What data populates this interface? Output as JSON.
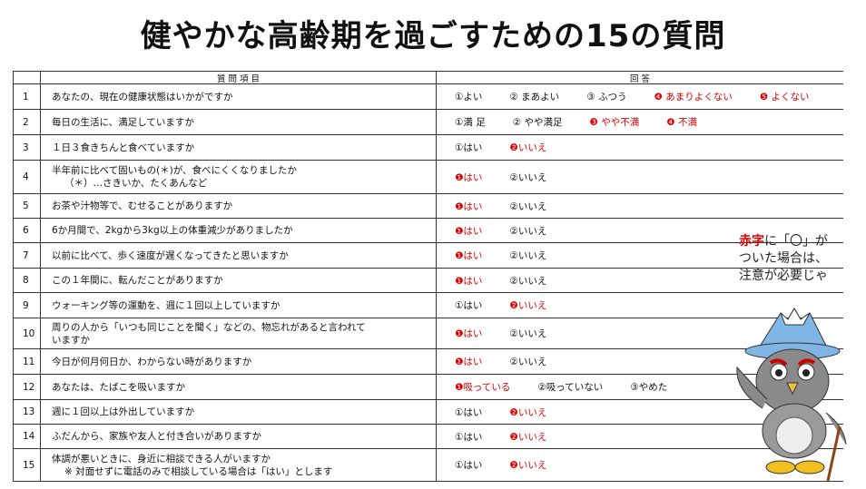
{
  "title": "健やかな高齢期を過ごすための15の質問",
  "table": {
    "headers": [
      "質 問 項 目",
      "回 答"
    ],
    "rows": [
      {
        "no": 1,
        "question": [
          "あなたの、現在の健康状態はいかがですか"
        ],
        "options": [
          {
            "text": "①よい",
            "red": false
          },
          {
            "text": "② まあよい",
            "red": false
          },
          {
            "text": "③ ふつう",
            "red": false
          },
          {
            "text": "❹ あまりよくない",
            "red": true
          },
          {
            "text": "❺ よくない",
            "red": true
          }
        ]
      },
      {
        "no": 2,
        "question": [
          "毎日の生活に、満足していますか"
        ],
        "options": [
          {
            "text": "①満 足",
            "red": false
          },
          {
            "text": "② やや満足",
            "red": false
          },
          {
            "text": "❸ やや不満",
            "red": true
          },
          {
            "text": "❹ 不満",
            "red": true
          }
        ]
      },
      {
        "no": 3,
        "question": [
          "１日３食きちんと食べていますか"
        ],
        "options": [
          {
            "text": "①はい",
            "red": false
          },
          {
            "text": "❷いいえ",
            "red": true
          }
        ]
      },
      {
        "no": 4,
        "question": [
          "半年前に比べて固いもの(＊)が、食べにくくなりましたか",
          "（＊）…さきいか、たくあんなど"
        ],
        "options": [
          {
            "text": "❶はい",
            "red": true
          },
          {
            "text": "②いいえ",
            "red": false
          }
        ]
      },
      {
        "no": 5,
        "question": [
          "お茶や汁物等で、むせることがありますか"
        ],
        "options": [
          {
            "text": "❶はい",
            "red": true
          },
          {
            "text": "②いいえ",
            "red": false
          }
        ]
      },
      {
        "no": 6,
        "question": [
          "6か月間で、2kgから3kg以上の体重減少がありましたか"
        ],
        "options": [
          {
            "text": "❶はい",
            "red": true
          },
          {
            "text": "②いいえ",
            "red": false
          }
        ]
      },
      {
        "no": 7,
        "question": [
          "以前に比べて、歩く速度が遅くなってきたと思いますか"
        ],
        "options": [
          {
            "text": "❶はい",
            "red": true
          },
          {
            "text": "②いいえ",
            "red": false
          }
        ]
      },
      {
        "no": 8,
        "question": [
          "この１年間に、転んだことがありますか"
        ],
        "options": [
          {
            "text": "❶はい",
            "red": true
          },
          {
            "text": "②いいえ",
            "red": false
          }
        ]
      },
      {
        "no": 9,
        "question": [
          "ウォーキング等の運動を、週に１回以上していますか"
        ],
        "options": [
          {
            "text": "①はい",
            "red": false
          },
          {
            "text": "❷いいえ",
            "red": true
          }
        ]
      },
      {
        "no": 10,
        "question": [
          "周りの人から「いつも同じことを聞く」などの、物忘れがあると言われて",
          "いますか"
        ],
        "options": [
          {
            "text": "❶はい",
            "red": true
          },
          {
            "text": "②いいえ",
            "red": false
          }
        ]
      },
      {
        "no": 11,
        "question": [
          "今日が何月何日か、わからない時がありますか"
        ],
        "options": [
          {
            "text": "❶はい",
            "red": true
          },
          {
            "text": "②いいえ",
            "red": false
          }
        ]
      },
      {
        "no": 12,
        "question": [
          "あなたは、たばこを吸いますか"
        ],
        "options": [
          {
            "text": "❶吸っている",
            "red": true
          },
          {
            "text": "②吸っていない",
            "red": false
          },
          {
            "text": "③やめた",
            "red": false
          }
        ]
      },
      {
        "no": 13,
        "question": [
          "週に１回以上は外出していますか"
        ],
        "options": [
          {
            "text": "①はい",
            "red": false
          },
          {
            "text": "❷いいえ",
            "red": true
          }
        ]
      },
      {
        "no": 14,
        "question": [
          "ふだんから、家族や友人と付き合いがありますか"
        ],
        "options": [
          {
            "text": "①はい",
            "red": false
          },
          {
            "text": "❷いいえ",
            "red": true
          }
        ]
      },
      {
        "no": 15,
        "question": [
          "体調が悪いときに、身近に相談できる人がいますか",
          "※ 対面せずに電話のみで相談している場合は「はい」とします"
        ],
        "options": [
          {
            "text": "①はい",
            "red": false
          },
          {
            "text": "❷いいえ",
            "red": true
          }
        ]
      }
    ]
  },
  "note": {
    "red": "赤字",
    "lines": [
      "に「〇」が",
      "ついた場合は、",
      "注意が必要じゃ"
    ]
  }
}
